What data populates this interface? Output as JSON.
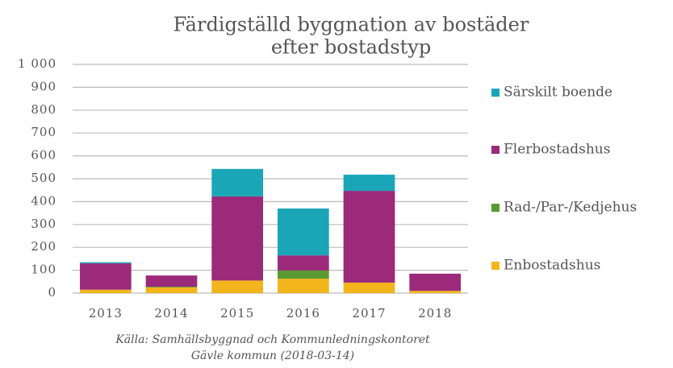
{
  "chart_data": {
    "type": "stacked_bar",
    "title": [
      "Färdigställd byggnation av bostäder",
      "efter bostadstyp"
    ],
    "categories": [
      "2013",
      "2014",
      "2015",
      "2016",
      "2017",
      "2018"
    ],
    "series": [
      {
        "name": "Enbostadshus",
        "color": "#f2b51b",
        "values": [
          15,
          25,
          55,
          63,
          46,
          10
        ]
      },
      {
        "name": "Rad-/Par-/Kedjehus",
        "color": "#5b9a32",
        "values": [
          0,
          3,
          0,
          36,
          0,
          0
        ]
      },
      {
        "name": "Flerbostadshus",
        "color": "#9b2a7b",
        "values": [
          115,
          49,
          368,
          66,
          401,
          75
        ]
      },
      {
        "name": "Särskilt boende",
        "color": "#1aa6b7",
        "values": [
          5,
          0,
          120,
          205,
          71,
          0
        ]
      }
    ],
    "ylim": [
      0,
      1000
    ],
    "yticks": [
      0,
      100,
      200,
      300,
      400,
      500,
      600,
      700,
      800,
      900,
      {
        "value": 1000,
        "label": "1 000"
      }
    ],
    "grid": true,
    "legend": "right",
    "source": [
      "Källa: Samhällsbyggnad och Kommunledningskontoret",
      "Gävle kommun (2018-03-14)"
    ]
  }
}
